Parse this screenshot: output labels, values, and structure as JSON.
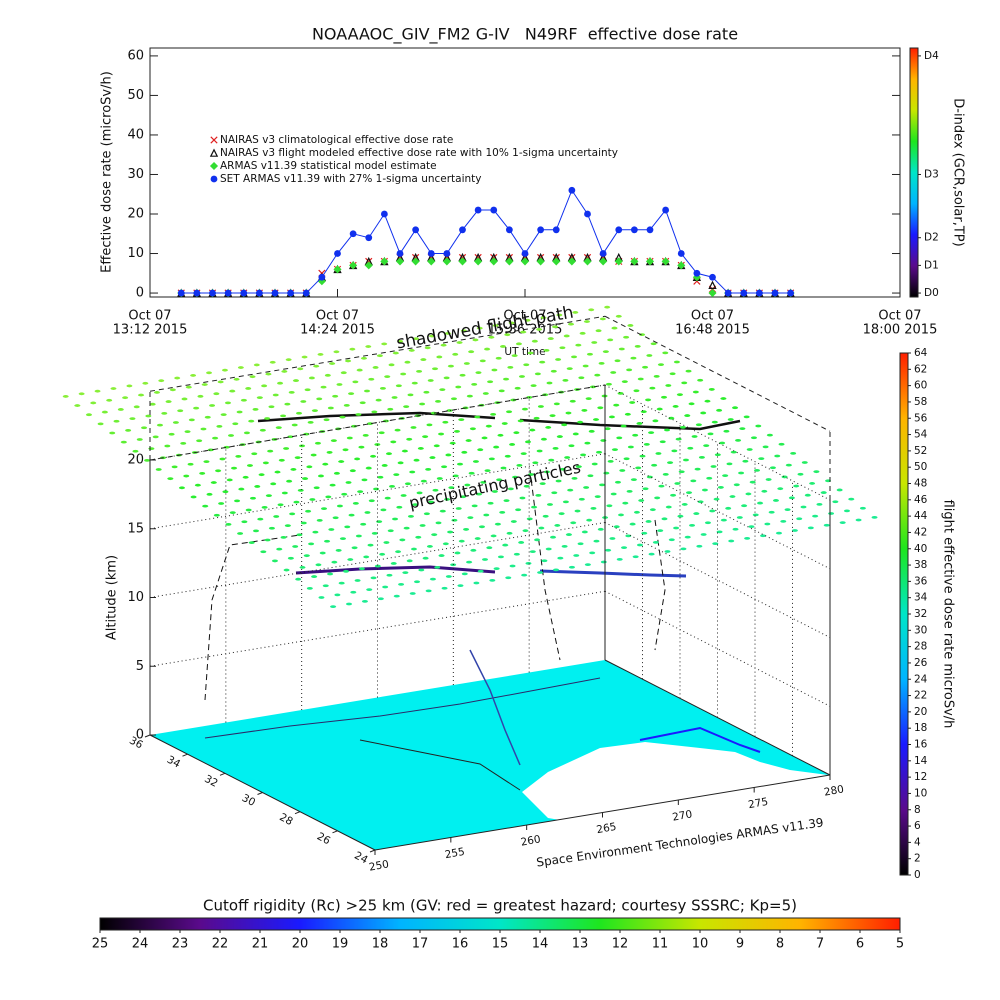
{
  "chart_data": [
    {
      "type": "line",
      "title": "NOAAAOC_GIV_FM2 G-IV   N49RF  effective dose rate",
      "ylabel": "Effective dose rate (microSv/h)",
      "xlabel": "UT time",
      "xlim": [
        792,
        1080
      ],
      "xticks": [
        {
          "value": 792,
          "label": [
            "Oct 07",
            "13:12 2015"
          ]
        },
        {
          "value": 864,
          "label": [
            "Oct 07",
            "14:24 2015"
          ]
        },
        {
          "value": 936,
          "label": [
            "Oct 07",
            "15:36 2015"
          ]
        },
        {
          "value": 1008,
          "label": [
            "Oct 07",
            "16:48 2015"
          ]
        },
        {
          "value": 1080,
          "label": [
            "Oct 07",
            "18:00 2015"
          ]
        }
      ],
      "ylim": [
        -1,
        62
      ],
      "yticks": [
        0,
        10,
        20,
        30,
        40,
        50,
        60
      ],
      "legend": "upper left",
      "x": [
        804,
        810,
        816,
        822,
        828,
        834,
        840,
        846,
        852,
        858,
        864,
        870,
        876,
        882,
        888,
        894,
        900,
        906,
        912,
        918,
        924,
        930,
        936,
        942,
        948,
        954,
        960,
        966,
        972,
        978,
        984,
        990,
        996,
        1002,
        1008,
        1014,
        1020,
        1026,
        1032,
        1038
      ],
      "series": [
        {
          "name": "NAIRAS v3 climatological effective dose rate",
          "color": "#e02020",
          "marker": "x",
          "values": [
            0,
            0,
            0,
            0,
            0,
            0,
            0,
            0,
            0,
            5,
            6,
            7,
            8,
            8,
            9,
            9,
            9,
            9,
            9,
            9,
            9,
            9,
            9,
            9,
            9,
            9,
            9,
            9,
            8,
            8,
            8,
            8,
            7,
            3,
            1,
            0,
            0,
            0,
            0,
            0
          ]
        },
        {
          "name": "NAIRAS v3 flight modeled effective dose rate with 10% 1-sigma uncertainty",
          "color": "#111111",
          "marker": "triangle",
          "values": [
            0,
            0,
            0,
            0,
            0,
            0,
            0,
            0,
            0,
            4,
            6,
            7,
            8,
            8,
            9,
            9,
            9,
            9,
            9,
            9,
            9,
            9,
            9,
            9,
            9,
            9,
            9,
            9,
            9,
            8,
            8,
            8,
            7,
            4,
            2,
            0,
            0,
            0,
            0,
            0
          ]
        },
        {
          "name": "ARMAS v11.39 statistical model estimate",
          "color": "#33dd33",
          "marker": "diamond",
          "values": [
            0,
            0,
            0,
            0,
            0,
            0,
            0,
            0,
            0,
            3,
            6,
            7,
            7,
            8,
            8,
            8,
            8,
            8,
            8,
            8,
            8,
            8,
            8,
            8,
            8,
            8,
            8,
            8,
            8,
            8,
            8,
            8,
            7,
            4,
            0,
            0,
            0,
            0,
            0,
            0
          ]
        },
        {
          "name": "SET ARMAS v11.39 with 27% 1-sigma uncertainty",
          "color": "#1030ee",
          "marker": "circle",
          "line": true,
          "values": [
            0,
            0,
            0,
            0,
            0,
            0,
            0,
            0,
            0,
            4,
            10,
            15,
            14,
            20,
            10,
            16,
            10,
            10,
            16,
            21,
            21,
            16,
            10,
            16,
            16,
            26,
            20,
            10,
            16,
            16,
            16,
            21,
            10,
            5,
            4,
            0,
            0,
            0,
            0,
            0
          ]
        }
      ]
    },
    {
      "type": "surface3d",
      "zlabel": "Altitude (km)",
      "xlim": [
        250,
        280
      ],
      "xticks": [
        250,
        255,
        260,
        265,
        270,
        275,
        280
      ],
      "ylim": [
        24,
        36
      ],
      "yticks": [
        36,
        34,
        32,
        30,
        28,
        26,
        24
      ],
      "zlim": [
        0,
        20
      ],
      "zticks": [
        0,
        5,
        10,
        15,
        20
      ],
      "grid": true,
      "annotations": [
        "shadowed flight path",
        "precipitating particles",
        "Space Environment Technologies ARMAS v11.39"
      ]
    },
    {
      "type": "colorbar",
      "orientation": "vertical",
      "label": "flight effective dose rate microSv/h",
      "lim": [
        0,
        64
      ],
      "ticks": [
        0,
        2,
        4,
        6,
        8,
        10,
        12,
        14,
        16,
        18,
        20,
        22,
        24,
        26,
        28,
        30,
        32,
        34,
        36,
        38,
        40,
        42,
        44,
        46,
        48,
        50,
        52,
        54,
        56,
        58,
        60,
        62,
        64
      ],
      "colors": [
        "#000000",
        "#5a0a8c",
        "#1a1aff",
        "#00b4ff",
        "#00e6c8",
        "#1ee61e",
        "#c8e600",
        "#ffb400",
        "#ff1e00"
      ]
    },
    {
      "type": "colorbar",
      "orientation": "horizontal",
      "label": "Cutoff rigidity (Rc) >25 km (GV: red = greatest hazard; courtesy SSSRC; Kp=5)",
      "lim": [
        25,
        5
      ],
      "ticks": [
        25,
        24,
        23,
        22,
        21,
        20,
        19,
        18,
        17,
        16,
        15,
        14,
        13,
        12,
        11,
        10,
        9,
        8,
        7,
        6,
        5
      ],
      "colors": [
        "#000000",
        "#5a0a8c",
        "#1a1aff",
        "#00b4ff",
        "#00e6c8",
        "#1ee61e",
        "#c8e600",
        "#ffb400",
        "#ff1e00"
      ]
    },
    {
      "type": "colorbar",
      "orientation": "vertical",
      "label": "D-index (GCR,solar,TP)",
      "lim": [
        -1,
        62
      ],
      "ticks": [
        {
          "value": 0,
          "label": "D0"
        },
        {
          "value": 7,
          "label": "D1"
        },
        {
          "value": 14,
          "label": "D2"
        },
        {
          "value": 30,
          "label": "D3"
        },
        {
          "value": 60,
          "label": "D4"
        }
      ],
      "colors": [
        "#000000",
        "#5a0a8c",
        "#1a1aff",
        "#00b4ff",
        "#00e6c8",
        "#1ee61e",
        "#c8e600",
        "#ffb400",
        "#ff1e00"
      ]
    }
  ]
}
